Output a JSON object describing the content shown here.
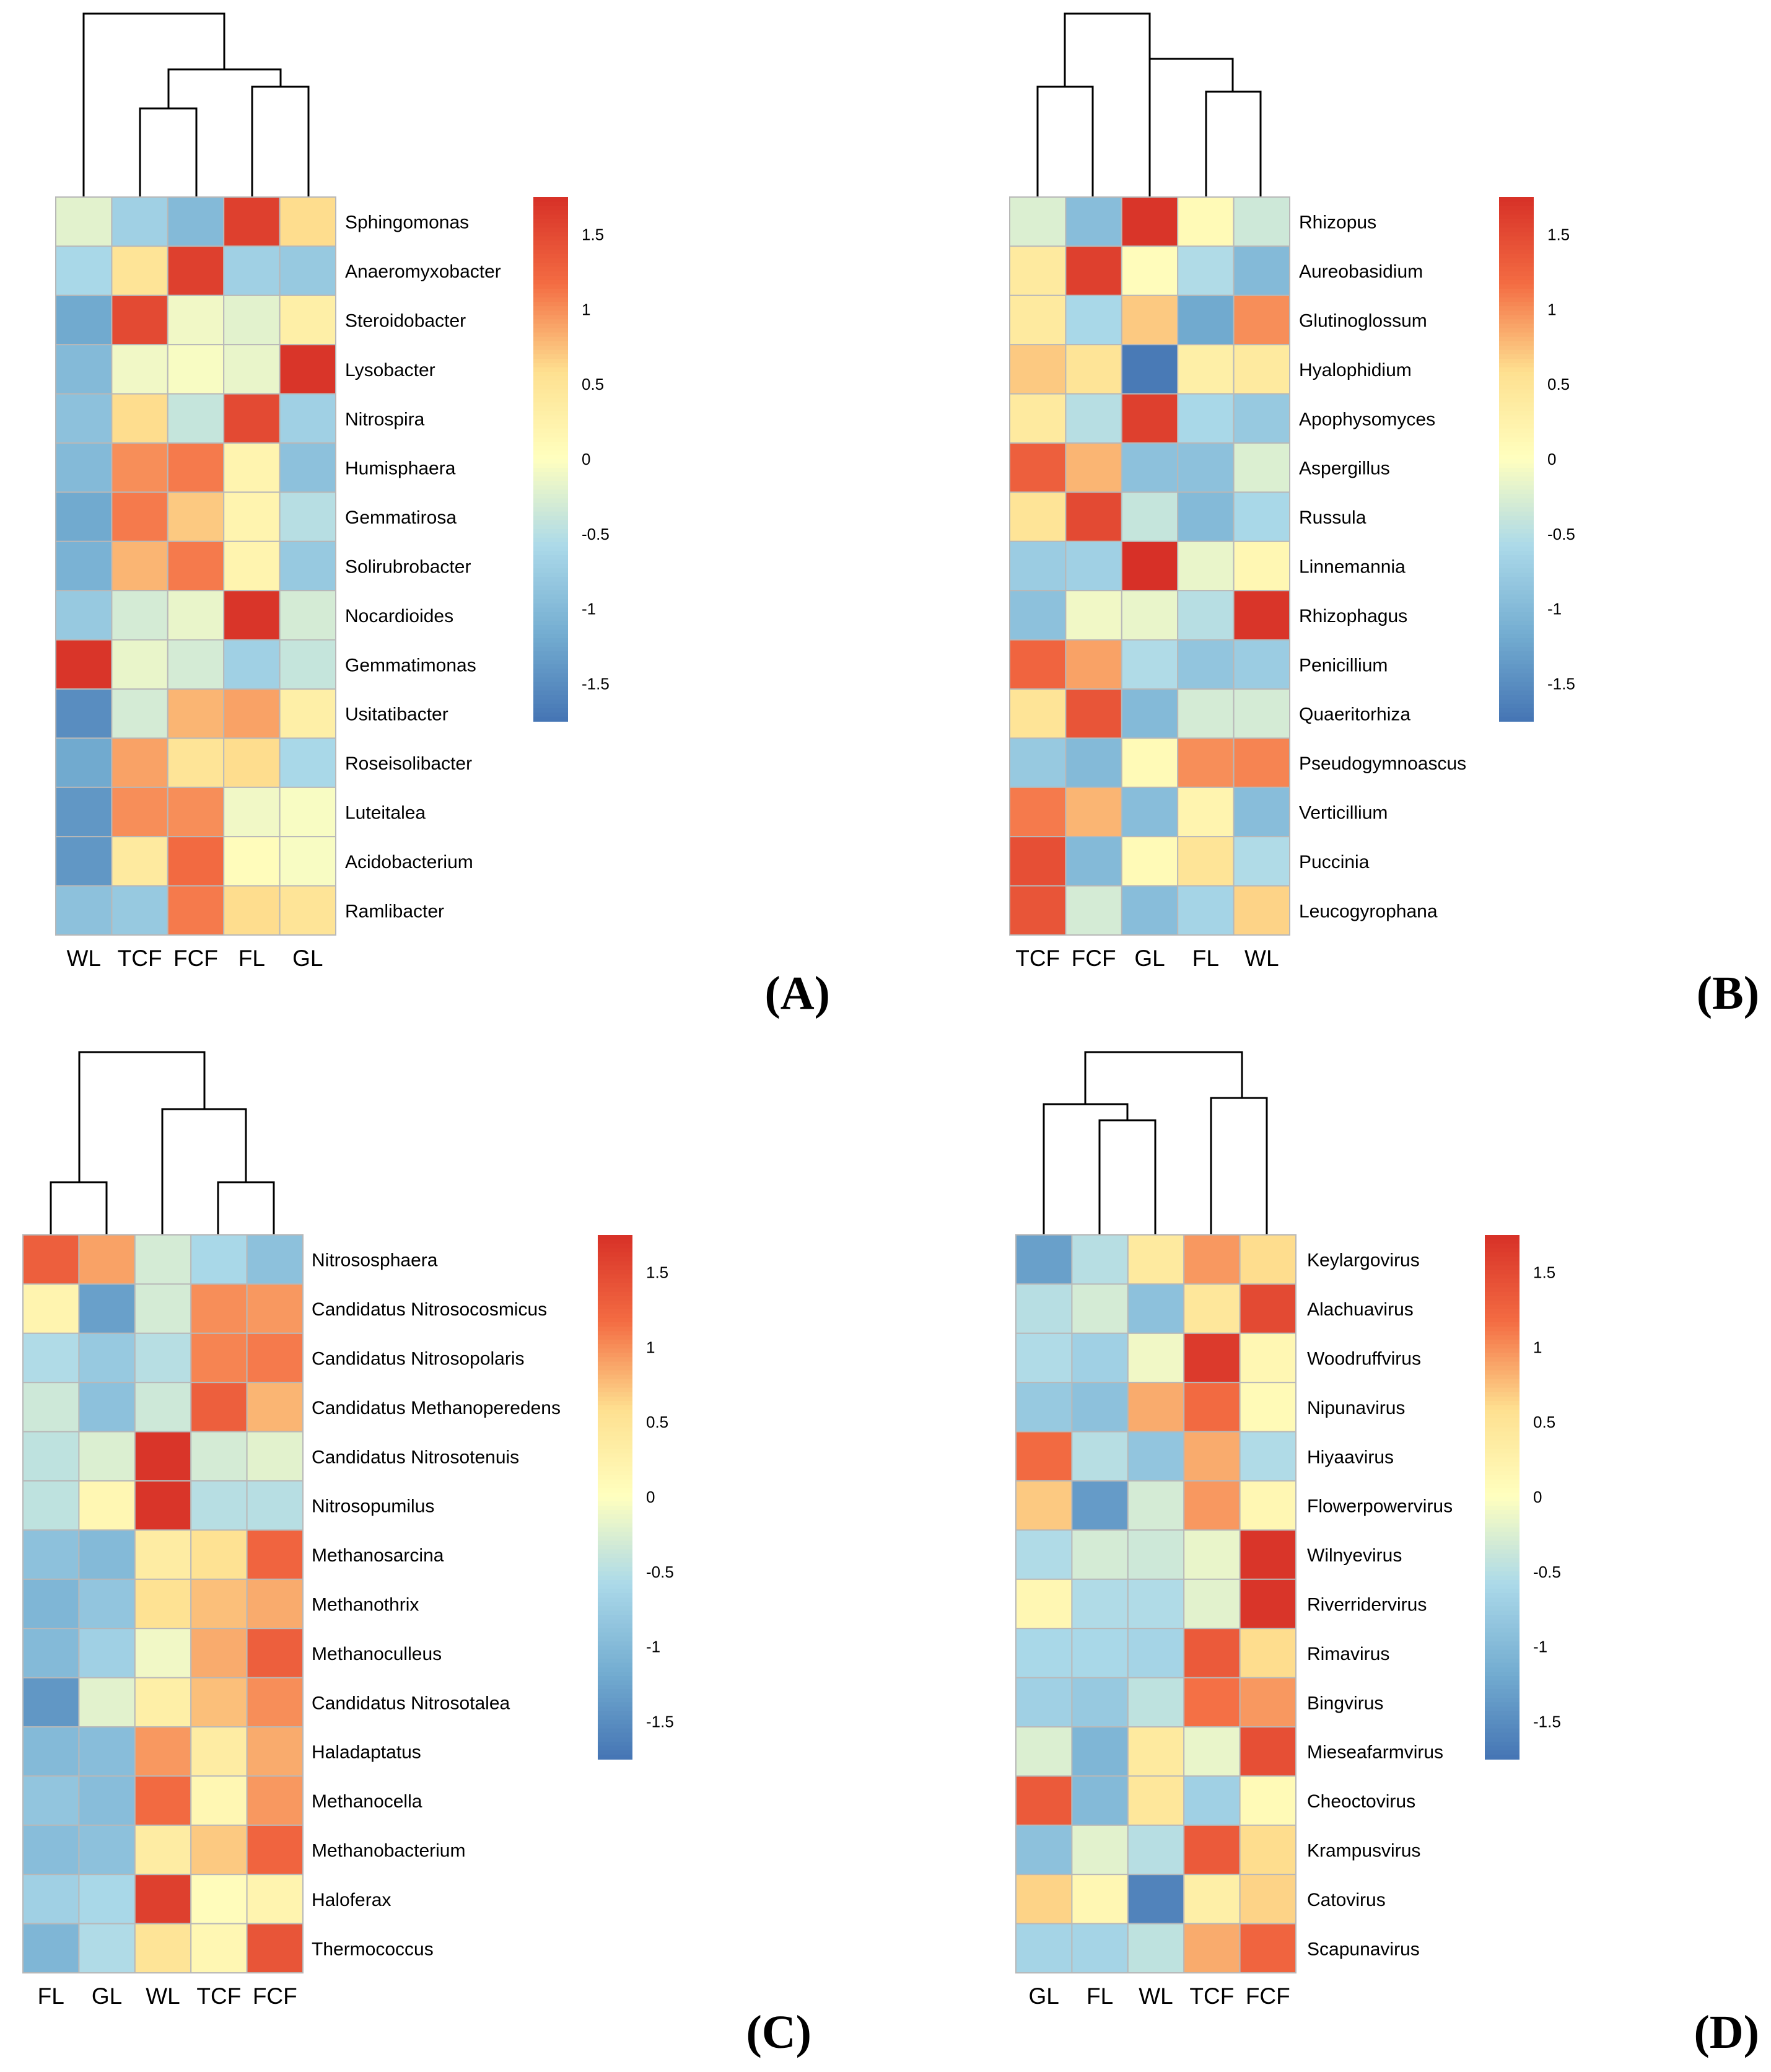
{
  "figure": {
    "panel_labels": [
      "(A)",
      "(B)",
      "(C)",
      "(D)"
    ]
  },
  "chart_data": [
    {
      "type": "heatmap",
      "panel": "A",
      "columns": [
        "WL",
        "TCF",
        "FCF",
        "FL",
        "GL"
      ],
      "rows": [
        "Sphingomonas",
        "Anaeromyxobacter",
        "Steroidobacter",
        "Lysobacter",
        "Nitrospira",
        "Humisphaera",
        "Gemmatirosa",
        "Solirubrobacter",
        "Nocardioides",
        "Gemmatimonas",
        "Usitatibacter",
        "Roseisolibacter",
        "Luteitalea",
        "Acidobacterium",
        "Ramlibacter"
      ],
      "values": [
        [
          -0.2,
          -0.7,
          -1.0,
          1.6,
          0.6
        ],
        [
          -0.6,
          0.5,
          1.6,
          -0.7,
          -0.8
        ],
        [
          -1.2,
          1.5,
          -0.1,
          -0.2,
          0.3
        ],
        [
          -1.0,
          -0.1,
          -0.05,
          -0.15,
          1.7
        ],
        [
          -0.9,
          0.6,
          -0.4,
          1.5,
          -0.7
        ],
        [
          -1.0,
          1.0,
          1.1,
          0.2,
          -0.9
        ],
        [
          -1.2,
          1.1,
          0.7,
          0.2,
          -0.5
        ],
        [
          -1.1,
          0.8,
          1.1,
          0.2,
          -0.8
        ],
        [
          -0.8,
          -0.3,
          -0.15,
          1.7,
          -0.3
        ],
        [
          1.7,
          -0.15,
          -0.3,
          -0.7,
          -0.4
        ],
        [
          -1.5,
          -0.3,
          0.8,
          0.9,
          0.3
        ],
        [
          -1.2,
          0.9,
          0.5,
          0.6,
          -0.6
        ],
        [
          -1.4,
          1.0,
          1.0,
          -0.1,
          -0.05
        ],
        [
          -1.4,
          0.4,
          1.2,
          0.05,
          -0.05
        ],
        [
          -0.9,
          -0.8,
          1.1,
          0.6,
          0.5
        ]
      ],
      "colorbar": {
        "ticks": [
          1.5,
          1,
          0.5,
          0,
          -0.5,
          -1,
          -1.5
        ],
        "range": [
          -1.75,
          1.75
        ]
      }
    },
    {
      "type": "heatmap",
      "panel": "B",
      "columns": [
        "TCF",
        "FCF",
        "GL",
        "FL",
        "WL"
      ],
      "rows": [
        "Rhizopus",
        "Aureobasidium",
        "Glutinoglossum",
        "Hyalophidium",
        "Apophysomyces",
        "Aspergillus",
        "Russula",
        "Linnemannia",
        "Rhizophagus",
        "Penicillium",
        "Quaeritorhiza",
        "Pseudogymnoascus",
        "Verticillium",
        "Puccinia",
        "Leucogyrophana"
      ],
      "values": [
        [
          -0.25,
          -0.95,
          1.7,
          0.1,
          -0.35
        ],
        [
          0.4,
          1.6,
          0.05,
          -0.55,
          -1.0
        ],
        [
          0.4,
          -0.6,
          0.7,
          -1.2,
          1.0
        ],
        [
          0.7,
          0.5,
          -1.7,
          0.3,
          0.4
        ],
        [
          0.4,
          -0.5,
          1.6,
          -0.6,
          -0.8
        ],
        [
          1.3,
          0.8,
          -0.9,
          -0.9,
          -0.25
        ],
        [
          0.5,
          1.5,
          -0.4,
          -1.0,
          -0.6
        ],
        [
          -0.75,
          -0.7,
          1.75,
          -0.15,
          0.15
        ],
        [
          -0.9,
          -0.1,
          -0.15,
          -0.5,
          1.7
        ],
        [
          1.25,
          0.9,
          -0.55,
          -0.85,
          -0.75
        ],
        [
          0.5,
          1.4,
          -1.0,
          -0.3,
          -0.3
        ],
        [
          -0.8,
          -1.0,
          0.1,
          1.0,
          1.05
        ],
        [
          1.1,
          0.8,
          -0.95,
          0.2,
          -0.95
        ],
        [
          1.45,
          -1.0,
          0.1,
          0.5,
          -0.55
        ],
        [
          1.4,
          -0.3,
          -0.95,
          -0.65,
          0.65
        ]
      ],
      "colorbar": {
        "ticks": [
          1.5,
          1,
          0.5,
          0,
          -0.5,
          -1,
          -1.5
        ],
        "range": [
          -1.75,
          1.75
        ]
      }
    },
    {
      "type": "heatmap",
      "panel": "C",
      "columns": [
        "FL",
        "GL",
        "WL",
        "TCF",
        "FCF"
      ],
      "rows": [
        "Nitrososphaera",
        "Candidatus Nitrosocosmicus",
        "Candidatus Nitrosopolaris",
        "Candidatus Methanoperedens",
        "Candidatus Nitrosotenuis",
        "Nitrosopumilus",
        "Methanosarcina",
        "Methanothrix",
        "Methanoculleus",
        "Candidatus Nitrosotalea",
        "Haladaptatus",
        "Methanocella",
        "Methanobacterium",
        "Haloferax",
        "Thermococcus"
      ],
      "values": [
        [
          1.3,
          0.9,
          -0.3,
          -0.6,
          -0.9
        ],
        [
          0.2,
          -1.3,
          -0.3,
          1.0,
          0.95
        ],
        [
          -0.55,
          -0.8,
          -0.5,
          1.05,
          1.1
        ],
        [
          -0.35,
          -0.9,
          -0.35,
          1.3,
          0.8
        ],
        [
          -0.45,
          -0.25,
          1.7,
          -0.3,
          -0.2
        ],
        [
          -0.45,
          0.15,
          1.7,
          -0.5,
          -0.5
        ],
        [
          -0.9,
          -1.0,
          0.35,
          0.55,
          1.25
        ],
        [
          -1.05,
          -0.85,
          0.55,
          0.75,
          0.85
        ],
        [
          -1.0,
          -0.7,
          -0.1,
          0.85,
          1.3
        ],
        [
          -1.4,
          -0.2,
          0.3,
          0.75,
          1.0
        ],
        [
          -1.0,
          -0.95,
          0.95,
          0.35,
          0.85
        ],
        [
          -0.85,
          -0.95,
          1.2,
          0.15,
          0.95
        ],
        [
          -0.95,
          -0.9,
          0.35,
          0.7,
          1.25
        ],
        [
          -0.7,
          -0.6,
          1.6,
          0.05,
          0.2
        ],
        [
          -1.05,
          -0.55,
          0.5,
          0.15,
          1.4
        ]
      ],
      "colorbar": {
        "ticks": [
          1.5,
          1,
          0.5,
          0,
          -0.5,
          -1,
          -1.5
        ],
        "range": [
          -1.75,
          1.75
        ]
      }
    },
    {
      "type": "heatmap",
      "panel": "D",
      "columns": [
        "GL",
        "FL",
        "WL",
        "TCF",
        "FCF"
      ],
      "rows": [
        "Keylargovirus",
        "Alachuavirus",
        "Woodruffvirus",
        "Nipunavirus",
        "Hiyaavirus",
        "Flowerpowervirus",
        "Wilnyevirus",
        "Riverridervirus",
        "Rimavirus",
        "Bingvirus",
        "Mieseafarmvirus",
        "Cheoctovirus",
        "Krampusvirus",
        "Catovirus",
        "Scapunavirus"
      ],
      "values": [
        [
          -1.3,
          -0.5,
          0.4,
          0.95,
          0.6
        ],
        [
          -0.5,
          -0.3,
          -0.9,
          0.45,
          1.5
        ],
        [
          -0.55,
          -0.7,
          -0.1,
          1.65,
          0.15
        ],
        [
          -0.8,
          -0.9,
          0.85,
          1.2,
          0.1
        ],
        [
          1.2,
          -0.5,
          -0.85,
          0.85,
          -0.55
        ],
        [
          0.7,
          -1.35,
          -0.3,
          0.95,
          0.15
        ],
        [
          -0.55,
          -0.3,
          -0.35,
          -0.15,
          1.7
        ],
        [
          0.15,
          -0.55,
          -0.55,
          -0.2,
          1.7
        ],
        [
          -0.6,
          -0.6,
          -0.65,
          1.35,
          0.6
        ],
        [
          -0.7,
          -0.8,
          -0.45,
          1.15,
          0.95
        ],
        [
          -0.25,
          -1.05,
          0.4,
          -0.15,
          1.45
        ],
        [
          1.35,
          -1.0,
          0.45,
          -0.7,
          0.1
        ],
        [
          -0.9,
          -0.2,
          -0.5,
          1.35,
          0.6
        ],
        [
          0.65,
          0.15,
          -1.6,
          0.3,
          0.65
        ],
        [
          -0.65,
          -0.65,
          -0.45,
          0.85,
          1.25
        ]
      ],
      "colorbar": {
        "ticks": [
          1.5,
          1,
          0.5,
          0,
          -0.5,
          -1,
          -1.5
        ],
        "range": [
          -1.75,
          1.75
        ]
      }
    }
  ]
}
